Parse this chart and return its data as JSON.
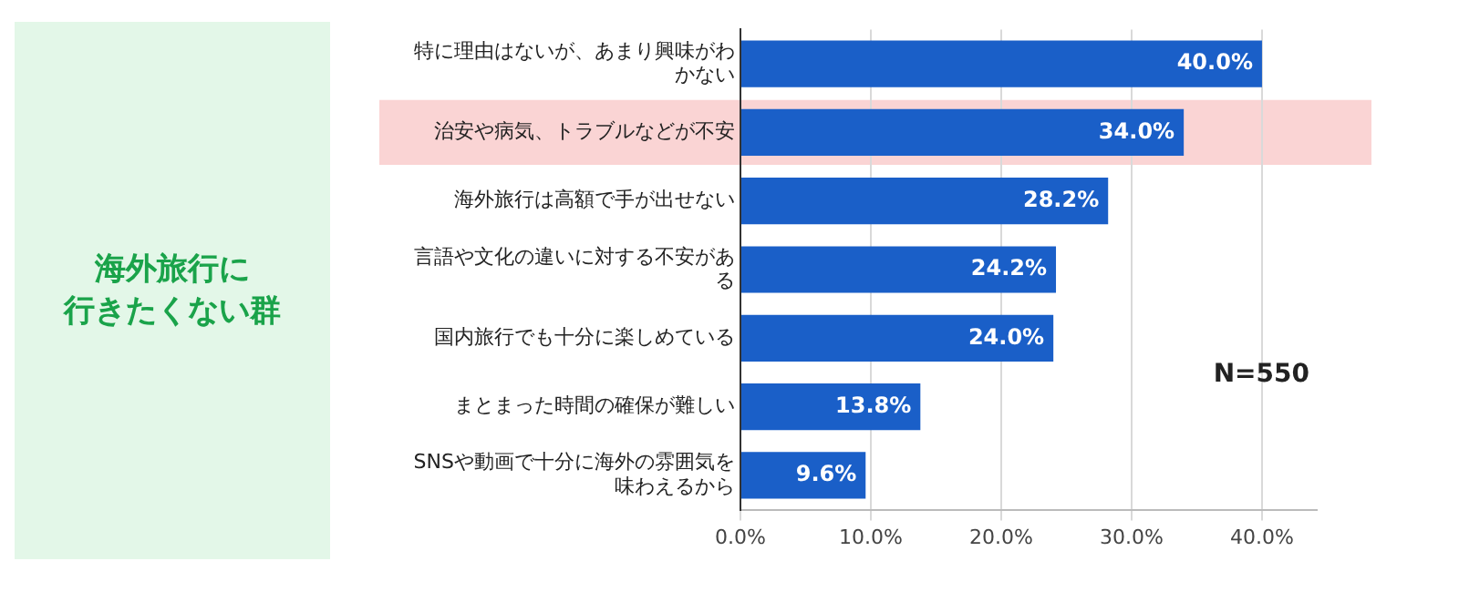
{
  "chart_data": {
    "type": "bar",
    "orientation": "horizontal",
    "title": "海外旅行に行きたくない群",
    "categories": [
      "特に理由はないが、あまり興味がわかない",
      "治安や病気、トラブルなどが不安",
      "海外旅行は高額で手が出せない",
      "言語や文化の違いに対する不安がある",
      "国内旅行でも十分に楽しめている",
      "まとまった時間の確保が難しい",
      "SNSや動画で十分に海外の雰囲気を味わえるから"
    ],
    "values": [
      40.0,
      34.0,
      28.2,
      24.2,
      24.0,
      13.8,
      9.6
    ],
    "value_labels": [
      "40.0%",
      "34.0%",
      "28.2%",
      "24.2%",
      "24.0%",
      "13.8%",
      "9.6%"
    ],
    "color": "#1a5fc8",
    "xlim": [
      0,
      44.2
    ],
    "xticks": [
      {
        "value": 0,
        "label": "0.0%"
      },
      {
        "value": 10,
        "label": "10.0%"
      },
      {
        "value": 20,
        "label": "20.0%"
      },
      {
        "value": 30,
        "label": "30.0%"
      },
      {
        "value": 40,
        "label": "40.0%"
      }
    ],
    "grid": "x",
    "bands": [
      {
        "axis": "y",
        "from": "治安や病気、トラブルなどが不安",
        "to": "治安や病気、トラブルなどが不安",
        "color": "#fad4d4"
      }
    ],
    "annotations": [
      "N=550"
    ]
  }
}
